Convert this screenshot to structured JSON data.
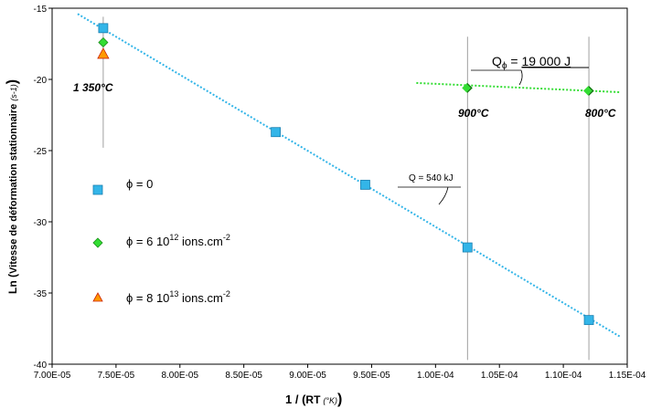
{
  "chart_data": {
    "type": "scatter",
    "xlabel_main": "1 / (",
    "xlabel_rt": "RT",
    "xlabel_unit": "(°K)",
    "xlabel_close": ")",
    "ylabel_main": "Ln (",
    "ylabel_text": "Vitesse de déformation stationnaire",
    "ylabel_unit": "(s-1)",
    "ylabel_close": ")",
    "xlim": [
      7e-05,
      0.000115
    ],
    "ylim": [
      -40,
      -15
    ],
    "x_ticks": [
      7e-05,
      7.5e-05,
      8e-05,
      8.5e-05,
      9e-05,
      9.5e-05,
      0.0001,
      0.000105,
      0.00011,
      0.000115
    ],
    "x_tick_labels": [
      "7.00E-05",
      "7.50E-05",
      "8.00E-05",
      "8.50E-05",
      "9.00E-05",
      "9.50E-05",
      "1.00E-04",
      "1.05E-04",
      "1.10E-04",
      "1.15E-04"
    ],
    "y_ticks": [
      -40,
      -35,
      -30,
      -25,
      -20,
      -15
    ],
    "y_tick_labels": [
      "-40",
      "-35",
      "-30",
      "-25",
      "-20",
      "-15"
    ],
    "grid": false,
    "series": [
      {
        "name": "φ = 0",
        "marker": "square",
        "color": "#33b5e8",
        "x": [
          7.4e-05,
          8.75e-05,
          9.45e-05,
          0.0001025,
          0.000112
        ],
        "y": [
          -16.4,
          -23.7,
          -27.4,
          -31.8,
          -36.9
        ]
      },
      {
        "name": "φ = 6 10¹² ions.cm⁻²",
        "marker": "diamond",
        "color": "#33dd33",
        "x": [
          7.4e-05,
          0.0001025,
          0.000112
        ],
        "y": [
          -17.4,
          -20.6,
          -20.8
        ]
      },
      {
        "name": "φ = 8 10¹³ ions.cm⁻²",
        "marker": "triangle",
        "color": "#ff9900",
        "x": [
          7.4e-05
        ],
        "y": [
          -18.2
        ]
      }
    ],
    "fit_lines": [
      {
        "color": "#33b5e8",
        "x": [
          7.2e-05,
          0.0001145
        ],
        "y": [
          -15.4,
          -38.1
        ]
      },
      {
        "color": "#33dd33",
        "x": [
          9.85e-05,
          0.0001145
        ],
        "y": [
          -20.25,
          -20.9
        ]
      }
    ],
    "vlines_x": [
      7.4e-05,
      0.0001025,
      0.000112
    ],
    "temperature_labels": [
      "1 350°C",
      "900°C",
      "800°C"
    ],
    "annotation_q_blue": "Q = 540 kJ",
    "annotation_q_green_prefix": "Q",
    "annotation_q_green_sub": "ϕ",
    "annotation_q_green_eq": " = ",
    "annotation_q_green_value": "19 000 J",
    "legend_phi": "ϕ",
    "legend_1_text": " = 0",
    "legend_2_text": " = 6 10",
    "legend_2_sup": "12",
    "legend_2_rest": " ions.cm",
    "legend_2_exp": "-2",
    "legend_3_text": " = 8 10",
    "legend_3_sup": "13",
    "legend_3_rest": " ions.cm",
    "legend_3_exp": "-2"
  }
}
